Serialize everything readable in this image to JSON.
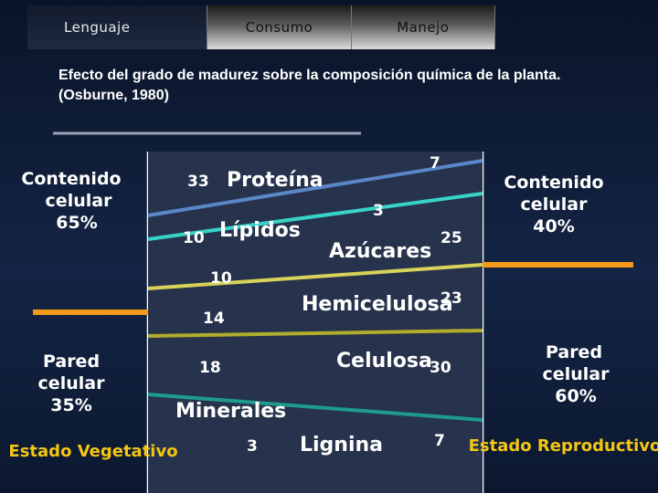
{
  "tabs": [
    {
      "label": "Lenguaje"
    },
    {
      "label": "Consumo"
    },
    {
      "label": "Manejo"
    }
  ],
  "title": {
    "line1": "Efecto del grado de madurez sobre la composición química de la planta.",
    "line2": "(Osburne, 1980)"
  },
  "left": {
    "content": {
      "line1": "Contenido",
      "line2": "celular",
      "line3": "65%"
    },
    "wall": {
      "line1": "Pared",
      "line2": "celular",
      "line3": "35%"
    },
    "stage": "Estado Vegetativo"
  },
  "right": {
    "content": {
      "line1": "Contenido",
      "line2": "celular",
      "line3": "40%"
    },
    "wall": {
      "line1": "Pared",
      "line2": "celular",
      "line3": "60%"
    },
    "stage": "Estado Reproductivo"
  },
  "components": [
    {
      "name": "Proteína",
      "left_value": "33",
      "right_value": "7"
    },
    {
      "name": "Lípidos",
      "left_value": "10",
      "right_value": "3"
    },
    {
      "name": "Azúcares",
      "left_value": "10",
      "right_value": "25"
    },
    {
      "name": "Hemicelulosa",
      "left_value": "14",
      "right_value": "23"
    },
    {
      "name": "Celulosa",
      "left_value": "18",
      "right_value": "30"
    },
    {
      "name": "Minerales",
      "left_value": "",
      "right_value": ""
    },
    {
      "name": "Lignina",
      "left_value": "3",
      "right_value": "7"
    }
  ],
  "colors": {
    "background": "#132444",
    "proteina_line": "#5b86c8",
    "lipidos_line": "#39d3c6",
    "azucares_line": "#d8d25a",
    "hemicelulosa_line": "#b1ad2e",
    "celulosa_line": "#1e9a8f",
    "content_divider": "#f39a1a",
    "stage_text": "#f3c613"
  }
}
